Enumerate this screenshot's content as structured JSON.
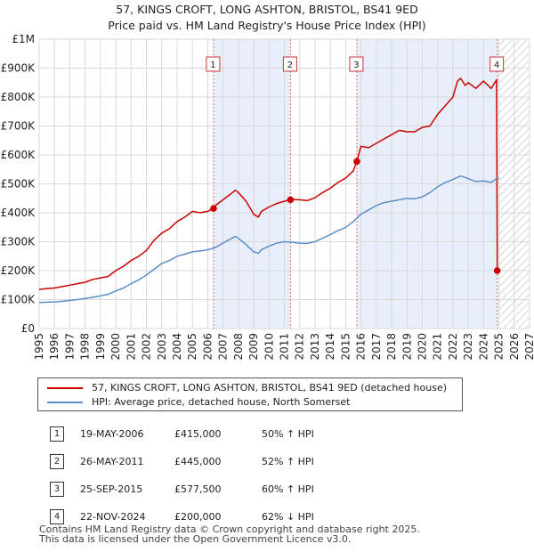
{
  "header": {
    "title": "57, KINGS CROFT, LONG ASHTON, BRISTOL, BS41 9ED",
    "subtitle": "Price paid vs. HM Land Registry's House Price Index (HPI)"
  },
  "colors": {
    "property": "#cc0000",
    "hpi": "#5b8fc9",
    "shade": "#e8eefa",
    "grid": "#d9d9d9",
    "vline": "#e07070",
    "hatch": "#c8c8c8"
  },
  "chart_data": {
    "type": "line",
    "title": "Price paid vs. HM Land Registry's House Price Index (HPI)",
    "xlabel": "",
    "ylabel": "",
    "xlim": [
      1995,
      2027
    ],
    "ylim": [
      0,
      1000000
    ],
    "y_ticks": [
      0,
      100000,
      200000,
      300000,
      400000,
      500000,
      600000,
      700000,
      800000,
      900000,
      1000000
    ],
    "y_tick_labels": [
      "£0",
      "£100K",
      "£200K",
      "£300K",
      "£400K",
      "£500K",
      "£600K",
      "£700K",
      "£800K",
      "£900K",
      "£1M"
    ],
    "x_ticks": [
      1995,
      1996,
      1997,
      1998,
      1999,
      2000,
      2001,
      2002,
      2003,
      2004,
      2005,
      2006,
      2007,
      2008,
      2009,
      2010,
      2011,
      2012,
      2013,
      2014,
      2015,
      2016,
      2017,
      2018,
      2019,
      2020,
      2021,
      2022,
      2023,
      2024,
      2025,
      2026,
      2027
    ],
    "x_tick_labels": [
      "1995",
      "1996",
      "1997",
      "1998",
      "1999",
      "2000",
      "2001",
      "2002",
      "2003",
      "2004",
      "2005",
      "2006",
      "2007",
      "2008",
      "2009",
      "2010",
      "2011",
      "2012",
      "2013",
      "2014",
      "2015",
      "2016",
      "2017",
      "2018",
      "2019",
      "2020",
      "2021",
      "2022",
      "2023",
      "2024",
      "2025",
      "2026",
      "2027"
    ],
    "shaded_spans": [
      [
        2006.38,
        2011.4
      ],
      [
        2015.73,
        2024.89
      ]
    ],
    "forecast_from": 2025.0,
    "series": [
      {
        "name": "57, KINGS CROFT, LONG ASHTON, BRISTOL, BS41 9ED (detached house)",
        "x": [
          1995.0,
          1995.5,
          1996.0,
          1996.5,
          1997.0,
          1997.5,
          1998.0,
          1998.5,
          1999.0,
          1999.5,
          2000.0,
          2000.5,
          2001.0,
          2001.5,
          2002.0,
          2002.5,
          2003.0,
          2003.5,
          2004.0,
          2004.5,
          2005.0,
          2005.5,
          2006.0,
          2006.38,
          2006.5,
          2007.0,
          2007.5,
          2007.8,
          2008.0,
          2008.5,
          2009.0,
          2009.3,
          2009.5,
          2010.0,
          2010.5,
          2011.0,
          2011.4,
          2011.5,
          2012.0,
          2012.5,
          2013.0,
          2013.5,
          2014.0,
          2014.5,
          2015.0,
          2015.5,
          2015.73,
          2016.0,
          2016.5,
          2017.0,
          2017.5,
          2018.0,
          2018.5,
          2019.0,
          2019.5,
          2020.0,
          2020.5,
          2021.0,
          2021.5,
          2022.0,
          2022.3,
          2022.5,
          2022.8,
          2023.0,
          2023.5,
          2024.0,
          2024.5,
          2024.85,
          2024.89
        ],
        "values": [
          135000,
          138000,
          140000,
          145000,
          150000,
          155000,
          160000,
          170000,
          175000,
          180000,
          200000,
          215000,
          235000,
          250000,
          270000,
          305000,
          330000,
          345000,
          370000,
          385000,
          405000,
          400000,
          405000,
          415000,
          425000,
          445000,
          465000,
          478000,
          470000,
          440000,
          395000,
          385000,
          405000,
          420000,
          432000,
          440000,
          445000,
          446000,
          445000,
          442000,
          452000,
          470000,
          485000,
          505000,
          520000,
          545000,
          577500,
          630000,
          625000,
          640000,
          655000,
          670000,
          685000,
          680000,
          680000,
          695000,
          700000,
          740000,
          770000,
          800000,
          855000,
          865000,
          840000,
          850000,
          830000,
          855000,
          830000,
          860000,
          200000
        ]
      },
      {
        "name": "HPI: Average price, detached house, North Somerset",
        "x": [
          1995.0,
          1995.5,
          1996.0,
          1996.5,
          1997.0,
          1997.5,
          1998.0,
          1998.5,
          1999.0,
          1999.5,
          2000.0,
          2000.5,
          2001.0,
          2001.5,
          2002.0,
          2002.5,
          2003.0,
          2003.5,
          2004.0,
          2004.5,
          2005.0,
          2005.5,
          2006.0,
          2006.5,
          2007.0,
          2007.5,
          2007.8,
          2008.0,
          2008.5,
          2009.0,
          2009.3,
          2009.5,
          2010.0,
          2010.5,
          2011.0,
          2011.5,
          2012.0,
          2012.5,
          2013.0,
          2013.5,
          2014.0,
          2014.5,
          2015.0,
          2015.5,
          2016.0,
          2016.5,
          2017.0,
          2017.5,
          2018.0,
          2018.5,
          2019.0,
          2019.5,
          2020.0,
          2020.5,
          2021.0,
          2021.5,
          2022.0,
          2022.5,
          2022.8,
          2023.0,
          2023.5,
          2024.0,
          2024.5,
          2024.89,
          2025.0
        ],
        "values": [
          90000,
          91000,
          92000,
          94000,
          97000,
          100000,
          104000,
          108000,
          113000,
          118000,
          130000,
          140000,
          155000,
          168000,
          185000,
          205000,
          225000,
          235000,
          250000,
          257000,
          265000,
          268000,
          272000,
          280000,
          295000,
          310000,
          318000,
          312000,
          290000,
          265000,
          260000,
          272000,
          285000,
          295000,
          300000,
          298000,
          295000,
          294000,
          300000,
          312000,
          325000,
          338000,
          350000,
          370000,
          395000,
          410000,
          425000,
          435000,
          440000,
          445000,
          450000,
          448000,
          455000,
          470000,
          490000,
          505000,
          515000,
          527000,
          522000,
          518000,
          508000,
          510000,
          505000,
          520000,
          518000
        ]
      }
    ],
    "sales": [
      {
        "id": "1",
        "x": 2006.38,
        "value": 415000
      },
      {
        "id": "2",
        "x": 2011.4,
        "value": 445000
      },
      {
        "id": "3",
        "x": 2015.73,
        "value": 577500
      },
      {
        "id": "4",
        "x": 2024.89,
        "value": 200000
      }
    ]
  },
  "legend": {
    "property_label": "57, KINGS CROFT, LONG ASHTON, BRISTOL, BS41 9ED (detached house)",
    "hpi_label": "HPI: Average price, detached house, North Somerset"
  },
  "sales_table": [
    {
      "num": "1",
      "date": "19-MAY-2006",
      "price": "£415,000",
      "hpi": "50% ↑ HPI"
    },
    {
      "num": "2",
      "date": "26-MAY-2011",
      "price": "£445,000",
      "hpi": "52% ↑ HPI"
    },
    {
      "num": "3",
      "date": "25-SEP-2015",
      "price": "£577,500",
      "hpi": "60% ↑ HPI"
    },
    {
      "num": "4",
      "date": "22-NOV-2024",
      "price": "£200,000",
      "hpi": "62% ↓ HPI"
    }
  ],
  "footer": {
    "line1": "Contains HM Land Registry data © Crown copyright and database right 2025.",
    "line2": "This data is licensed under the Open Government Licence v3.0."
  }
}
